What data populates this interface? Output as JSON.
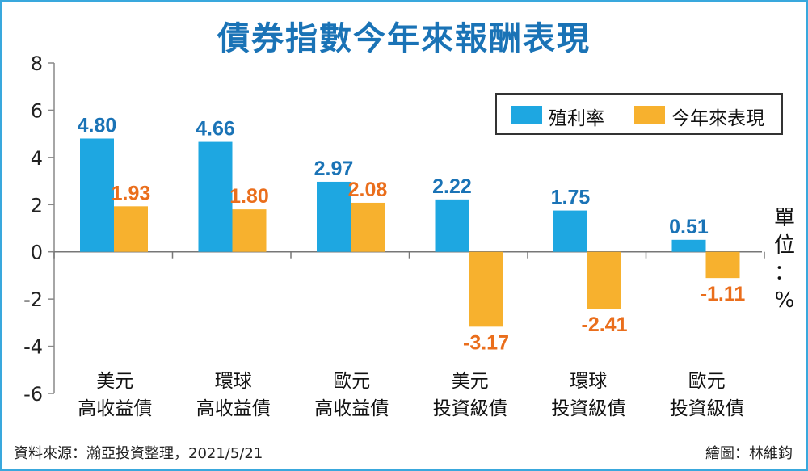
{
  "title": "債券指數今年來報酬表現",
  "unit_label": [
    "單",
    "位",
    "：",
    "%"
  ],
  "footer": {
    "source": "資料來源：瀚亞投資整理，2021/5/21",
    "credit": "繪圖：林維鈞"
  },
  "colors": {
    "yield": "#1ea7e1",
    "ytd": "#f7b12e",
    "yield_label": "#1a73b6",
    "ytd_label": "#ea6e1c"
  },
  "chart_data": {
    "type": "bar",
    "title": "債券指數今年來報酬表現",
    "categories": [
      [
        "美元",
        "高收益債"
      ],
      [
        "環球",
        "高收益債"
      ],
      [
        "歐元",
        "高收益債"
      ],
      [
        "美元",
        "投資級債"
      ],
      [
        "環球",
        "投資級債"
      ],
      [
        "歐元",
        "投資級債"
      ]
    ],
    "series": [
      {
        "name": "殖利率",
        "values": [
          4.8,
          4.66,
          2.97,
          2.22,
          1.75,
          0.51
        ]
      },
      {
        "name": "今年來表現",
        "values": [
          1.93,
          1.8,
          2.08,
          -3.17,
          -2.41,
          -1.11
        ]
      }
    ],
    "value_labels": [
      [
        "4.80",
        "4.66",
        "2.97",
        "2.22",
        "1.75",
        "0.51"
      ],
      [
        "1.93",
        "1.80",
        "2.08",
        "-3.17",
        "-2.41",
        "-1.11"
      ]
    ],
    "y_ticks": [
      "8",
      "6",
      "4",
      "2",
      "0",
      "-2",
      "-4",
      "-6"
    ],
    "ylim": [
      -6,
      8
    ],
    "legend_position": "top-right",
    "grid": false
  }
}
